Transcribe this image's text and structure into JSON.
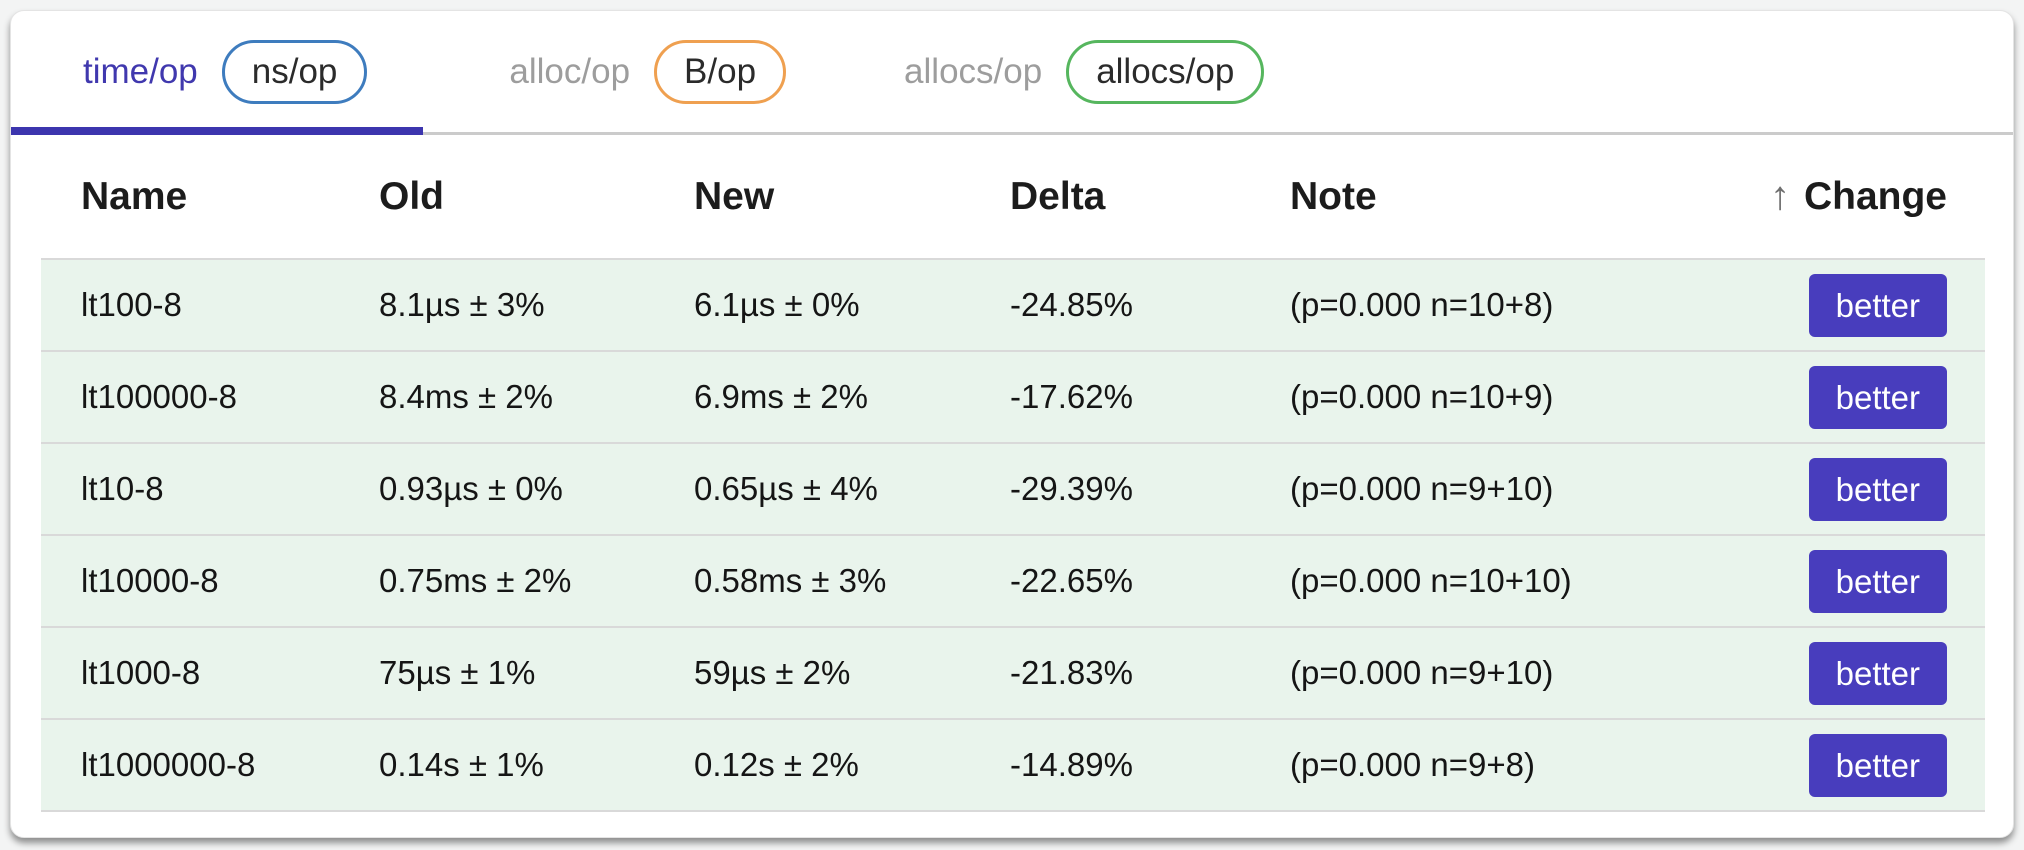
{
  "tabs": [
    {
      "label": "time/op",
      "unit": "ns/op",
      "active": true
    },
    {
      "label": "alloc/op",
      "unit": "B/op",
      "active": false
    },
    {
      "label": "allocs/op",
      "unit": "allocs/op",
      "active": false
    }
  ],
  "table": {
    "columns": {
      "name": "Name",
      "old": "Old",
      "new": "New",
      "delta": "Delta",
      "note": "Note",
      "change": "Change"
    },
    "sort": {
      "column": "Change",
      "direction": "ascending",
      "icon": "up-arrow"
    },
    "rows": [
      {
        "name": "lt100-8",
        "old": "8.1µs ± 3%",
        "new": "6.1µs ± 0%",
        "delta": "-24.85%",
        "note": "(p=0.000 n=10+8)",
        "change": "better"
      },
      {
        "name": "lt100000-8",
        "old": "8.4ms ± 2%",
        "new": "6.9ms ± 2%",
        "delta": "-17.62%",
        "note": "(p=0.000 n=10+9)",
        "change": "better"
      },
      {
        "name": "lt10-8",
        "old": "0.93µs ± 0%",
        "new": "0.65µs ± 4%",
        "delta": "-29.39%",
        "note": "(p=0.000 n=9+10)",
        "change": "better"
      },
      {
        "name": "lt10000-8",
        "old": "0.75ms ± 2%",
        "new": "0.58ms ± 3%",
        "delta": "-22.65%",
        "note": "(p=0.000 n=10+10)",
        "change": "better"
      },
      {
        "name": "lt1000-8",
        "old": "75µs ± 1%",
        "new": "59µs ± 2%",
        "delta": "-21.83%",
        "note": "(p=0.000 n=9+10)",
        "change": "better"
      },
      {
        "name": "lt1000000-8",
        "old": "0.14s ± 1%",
        "new": "0.12s ± 2%",
        "delta": "-14.89%",
        "note": "(p=0.000 n=9+8)",
        "change": "better"
      }
    ]
  },
  "colors": {
    "accent_indigo": "#3c35ae",
    "badge_better": "#483dbd",
    "row_improved_bg": "#e9f4ec",
    "pill_time": "#3e7cbe",
    "pill_alloc": "#efa050",
    "pill_allocs": "#56b65e",
    "inactive_tab_text": "#9d9d9d"
  }
}
